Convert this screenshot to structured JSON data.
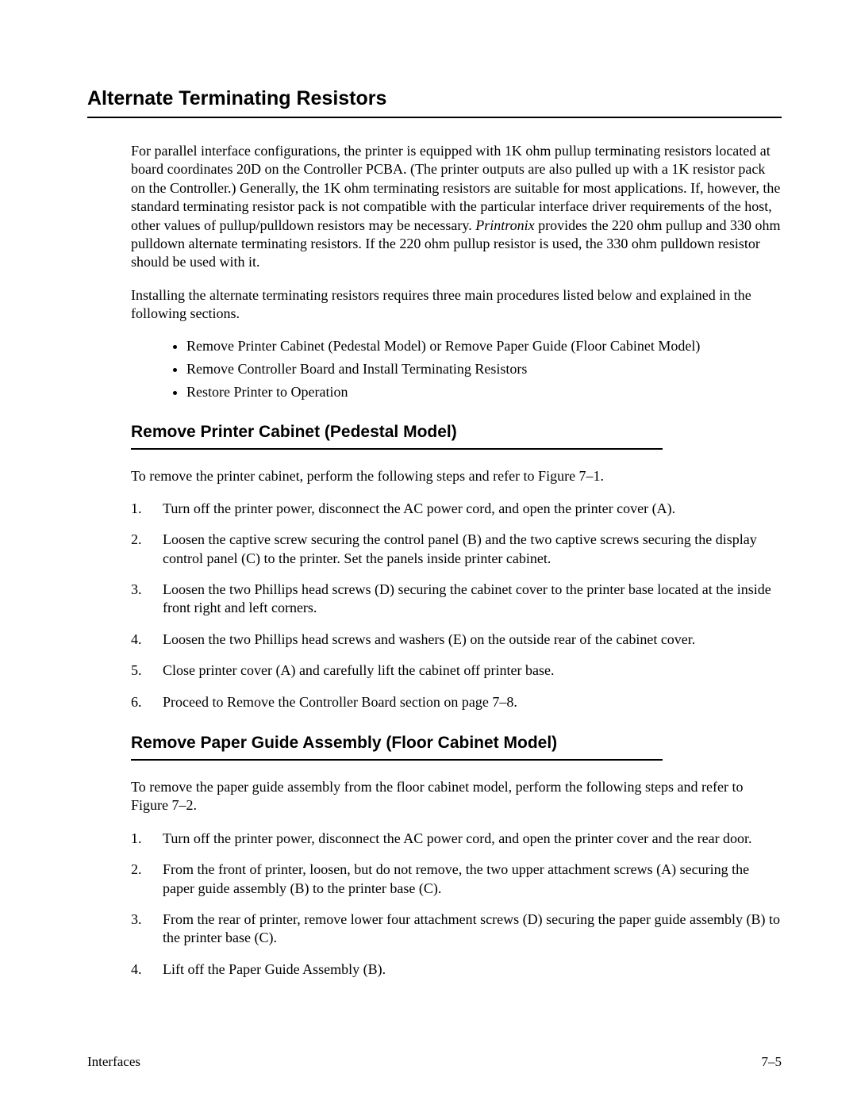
{
  "page": {
    "title": "Alternate Terminating Resistors",
    "intro_para_pre": "For parallel interface configurations, the printer is equipped with 1K ohm pullup terminating resistors located at board coordinates 20D on the Controller PCBA. (The printer outputs are also pulled up with a 1K resistor pack on the Controller.) Generally, the 1K ohm terminating resistors are suitable for most applications. If, however, the standard terminating resistor pack is not compatible with the particular interface driver requirements of the host, other values of pullup/pulldown resistors may be necessary. ",
    "intro_brand": "Printronix",
    "intro_para_post": " provides the 220 ohm pullup and 330 ohm pulldown alternate terminating resistors. If the 220 ohm pullup resistor is used, the 330 ohm pulldown resistor should be used with it.",
    "intro_para2": "Installing the alternate terminating resistors requires three main procedures listed below and explained in the following sections.",
    "bullets": [
      "Remove Printer Cabinet (Pedestal Model) or Remove Paper Guide (Floor Cabinet Model)",
      "Remove Controller Board and Install Terminating Resistors",
      "Restore Printer to Operation"
    ],
    "section1": {
      "heading": "Remove Printer Cabinet (Pedestal Model)",
      "lead": "To remove the printer cabinet, perform the following steps and refer to Figure 7–1.",
      "steps": [
        "Turn off the printer power, disconnect the AC power cord, and open the printer cover (A).",
        "Loosen the captive screw securing the control panel (B) and the two captive screws securing the display control panel (C) to the printer. Set the panels inside printer cabinet.",
        "Loosen the two Phillips head screws (D) securing the cabinet cover to the printer base located at the inside front right and left corners.",
        "Loosen the two Phillips head screws and washers (E) on the outside rear of the cabinet cover.",
        "Close printer cover (A) and carefully lift the cabinet off printer base.",
        "Proceed to Remove the Controller Board section on page 7–8."
      ]
    },
    "section2": {
      "heading": "Remove Paper Guide Assembly (Floor Cabinet Model)",
      "lead": "To remove the paper guide assembly from the floor cabinet model, perform the following steps and refer to Figure 7–2.",
      "steps": [
        "Turn off the printer power, disconnect the AC power cord, and open the printer cover and the rear door.",
        "From the front of printer, loosen, but do not remove, the two upper attachment screws (A) securing the paper guide assembly (B) to the printer base (C).",
        "From the rear of printer, remove lower four attachment screws (D) securing the paper guide assembly (B) to the printer base (C).",
        "Lift off the Paper Guide Assembly (B)."
      ]
    },
    "footer_left": "Interfaces",
    "footer_right": "7–5"
  }
}
